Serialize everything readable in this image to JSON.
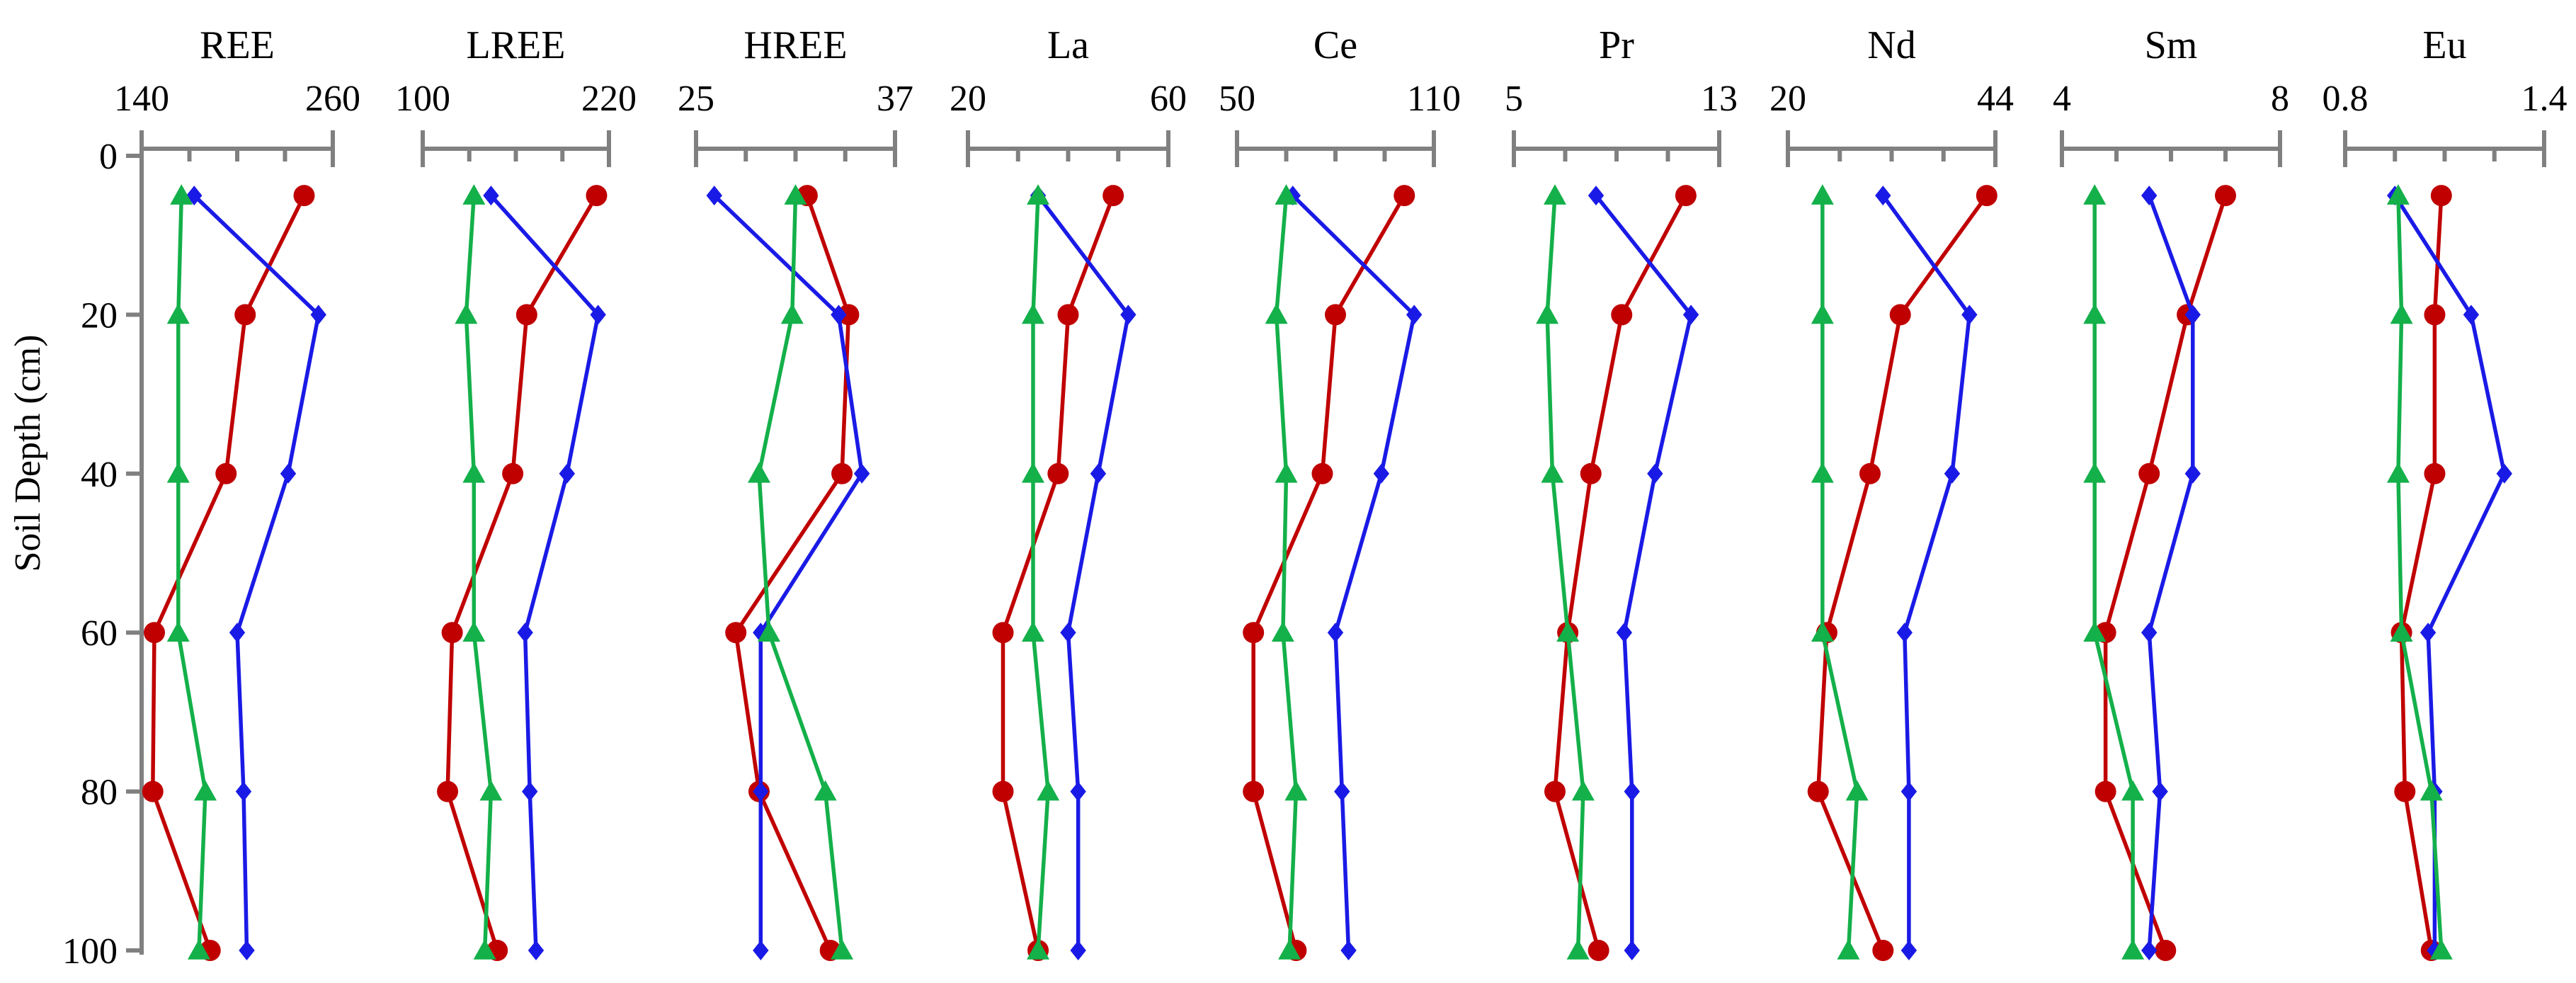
{
  "chart_data": {
    "type": "line",
    "ylabel": "Soil Depth (cm)",
    "ylim": [
      0,
      100
    ],
    "yticks": [
      0,
      20,
      40,
      60,
      80,
      100
    ],
    "series_colors": [
      "#c00000",
      "#1a1ae6",
      "#14b04a"
    ],
    "series_markers": [
      "circle",
      "diamond",
      "triangle"
    ],
    "panels": [
      {
        "title": "REE",
        "xlim": [
          140,
          260
        ],
        "xtick_labels": [
          "140",
          "260"
        ],
        "series": [
          {
            "depth": [
              5,
              20,
              40,
              60,
              80,
              100
            ],
            "x": [
              242,
              205,
              193,
              148,
              147,
              183
            ]
          },
          {
            "depth": [
              5,
              20,
              40,
              60,
              80,
              100
            ],
            "x": [
              173,
              251,
              232,
              200,
              204,
              206
            ]
          },
          {
            "depth": [
              5,
              20,
              40,
              60,
              80,
              100
            ],
            "x": [
              165,
              163,
              163,
              163,
              180,
              176
            ]
          }
        ]
      },
      {
        "title": "LREE",
        "xlim": [
          100,
          220
        ],
        "xtick_labels": [
          "100",
          "220"
        ],
        "series": [
          {
            "depth": [
              5,
              20,
              40,
              60,
              80,
              100
            ],
            "x": [
              212,
              167,
              158,
              119,
              116,
              148
            ]
          },
          {
            "depth": [
              5,
              20,
              40,
              60,
              80,
              100
            ],
            "x": [
              144,
              213,
              193,
              166,
              169,
              173
            ]
          },
          {
            "depth": [
              5,
              20,
              40,
              60,
              80,
              100
            ],
            "x": [
              133,
              128,
              133,
              133,
              144,
              140
            ]
          }
        ]
      },
      {
        "title": "HREE",
        "xlim": [
          25,
          37
        ],
        "xtick_labels": [
          "25",
          "37"
        ],
        "series": [
          {
            "depth": [
              5,
              20,
              40,
              60,
              80,
              100
            ],
            "x": [
              31.7,
              34.2,
              33.8,
              27.4,
              28.8,
              33.1
            ]
          },
          {
            "depth": [
              5,
              20,
              40,
              60,
              80,
              100
            ],
            "x": [
              26.1,
              33.6,
              35.0,
              28.9,
              28.9,
              28.9
            ]
          },
          {
            "depth": [
              5,
              20,
              40,
              60,
              80,
              100
            ],
            "x": [
              31.0,
              30.8,
              28.8,
              29.4,
              32.8,
              33.8
            ]
          }
        ]
      },
      {
        "title": "La",
        "xlim": [
          20,
          60
        ],
        "xtick_labels": [
          "20",
          "60"
        ],
        "series": [
          {
            "depth": [
              5,
              20,
              40,
              60,
              80,
              100
            ],
            "x": [
              49,
              40,
              38,
              27,
              27,
              34
            ]
          },
          {
            "depth": [
              5,
              20,
              40,
              60,
              80,
              100
            ],
            "x": [
              34,
              52,
              46,
              40,
              42,
              42
            ]
          },
          {
            "depth": [
              5,
              20,
              40,
              60,
              80,
              100
            ],
            "x": [
              34,
              33,
              33,
              33,
              36,
              34
            ]
          }
        ]
      },
      {
        "title": "Ce",
        "xlim": [
          50,
          110
        ],
        "xtick_labels": [
          "50",
          "110"
        ],
        "series": [
          {
            "depth": [
              5,
              20,
              40,
              60,
              80,
              100
            ],
            "x": [
              101,
              80,
              76,
              55,
              55,
              68
            ]
          },
          {
            "depth": [
              5,
              20,
              40,
              60,
              80,
              100
            ],
            "x": [
              67,
              104,
              94,
              80,
              82,
              84
            ]
          },
          {
            "depth": [
              5,
              20,
              40,
              60,
              80,
              100
            ],
            "x": [
              65,
              62,
              65,
              64,
              68,
              66
            ]
          }
        ]
      },
      {
        "title": "Pr",
        "xlim": [
          5,
          13
        ],
        "xtick_labels": [
          "5",
          "13"
        ],
        "series": [
          {
            "depth": [
              5,
              20,
              40,
              60,
              80,
              100
            ],
            "x": [
              11.7,
              9.2,
              8.0,
              7.1,
              6.6,
              8.3
            ]
          },
          {
            "depth": [
              5,
              20,
              40,
              60,
              80,
              100
            ],
            "x": [
              8.2,
              11.9,
              10.5,
              9.3,
              9.6,
              9.6
            ]
          },
          {
            "depth": [
              5,
              20,
              40,
              60,
              80,
              100
            ],
            "x": [
              6.6,
              6.3,
              6.5,
              7.1,
              7.7,
              7.5
            ]
          }
        ]
      },
      {
        "title": "Nd",
        "xlim": [
          20,
          44
        ],
        "xtick_labels": [
          "20",
          "44"
        ],
        "series": [
          {
            "depth": [
              5,
              20,
              40,
              60,
              80,
              100
            ],
            "x": [
              43,
              33,
              29.5,
              24.5,
              23.5,
              31
            ]
          },
          {
            "depth": [
              5,
              20,
              40,
              60,
              80,
              100
            ],
            "x": [
              31,
              41,
              39,
              33.5,
              34,
              34
            ]
          },
          {
            "depth": [
              5,
              20,
              40,
              60,
              80,
              100
            ],
            "x": [
              24,
              24,
              24,
              24,
              28,
              27
            ]
          }
        ]
      },
      {
        "title": "Sm",
        "xlim": [
          4,
          8
        ],
        "xtick_labels": [
          "4",
          "8"
        ],
        "series": [
          {
            "depth": [
              5,
              20,
              40,
              60,
              80,
              100
            ],
            "x": [
              7.0,
              6.3,
              5.6,
              4.8,
              4.8,
              5.9
            ]
          },
          {
            "depth": [
              5,
              20,
              40,
              60,
              80,
              100
            ],
            "x": [
              5.6,
              6.4,
              6.4,
              5.6,
              5.8,
              5.6
            ]
          },
          {
            "depth": [
              5,
              20,
              40,
              60,
              80,
              100
            ],
            "x": [
              4.6,
              4.6,
              4.6,
              4.6,
              5.3,
              5.3
            ]
          }
        ]
      },
      {
        "title": "Eu",
        "xlim": [
          0.8,
          1.4
        ],
        "xtick_labels": [
          "0.8",
          "1.4"
        ],
        "series": [
          {
            "depth": [
              5,
              20,
              40,
              60,
              80,
              100
            ],
            "x": [
              1.09,
              1.07,
              1.07,
              0.97,
              0.98,
              1.06
            ]
          },
          {
            "depth": [
              5,
              20,
              40,
              60,
              80,
              100
            ],
            "x": [
              0.95,
              1.18,
              1.28,
              1.05,
              1.07,
              1.07
            ]
          },
          {
            "depth": [
              5,
              20,
              40,
              60,
              80,
              100
            ],
            "x": [
              0.96,
              0.97,
              0.96,
              0.97,
              1.06,
              1.09
            ]
          }
        ]
      }
    ]
  }
}
